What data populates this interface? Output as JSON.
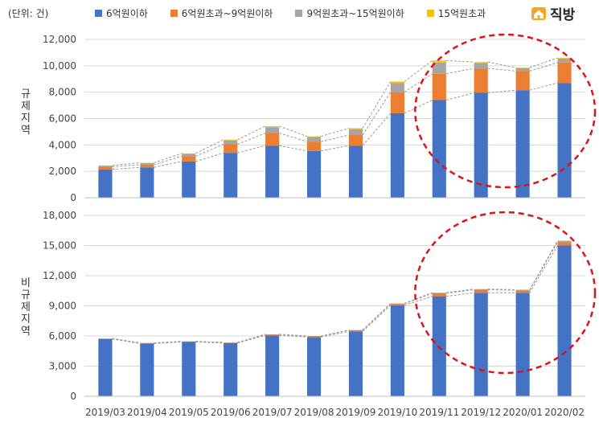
{
  "unit_label": "(단위: 건)",
  "logo": {
    "text": "직방",
    "icon": "house-icon"
  },
  "legend": [
    {
      "label": "6억원이하",
      "color": "#4472C4"
    },
    {
      "label": "6억원초과~9억원이하",
      "color": "#ED7D31"
    },
    {
      "label": "9억원초과~15억원이하",
      "color": "#A5A5A5"
    },
    {
      "label": "15억원초과",
      "color": "#FFC000"
    }
  ],
  "chart_data": [
    {
      "type": "bar",
      "stacked": true,
      "ylabel": "규제지역",
      "ylim": [
        0,
        12000
      ],
      "yticks": [
        0,
        2000,
        4000,
        6000,
        8000,
        10000,
        12000
      ],
      "ytick_labels": [
        "0",
        "2,000",
        "4,000",
        "6,000",
        "8,000",
        "10,000",
        "12,000"
      ],
      "categories": [
        "2019/03",
        "2019/04",
        "2019/05",
        "2019/06",
        "2019/07",
        "2019/08",
        "2019/09",
        "2019/10",
        "2019/11",
        "2019/12",
        "2020/01",
        "2020/02"
      ],
      "series": [
        {
          "name": "6억원이하",
          "values": [
            2150,
            2300,
            2750,
            3400,
            3950,
            3550,
            3950,
            6400,
            7400,
            7950,
            8150,
            8700
          ]
        },
        {
          "name": "6억원초과~9억원이하",
          "values": [
            200,
            200,
            400,
            650,
            950,
            700,
            800,
            1600,
            2000,
            1850,
            1450,
            1550
          ]
        },
        {
          "name": "9억원초과~15억원이하",
          "values": [
            80,
            130,
            180,
            300,
            450,
            350,
            450,
            700,
            850,
            400,
            230,
            300
          ]
        },
        {
          "name": "15억원초과",
          "values": [
            20,
            20,
            30,
            50,
            70,
            50,
            70,
            100,
            150,
            80,
            30,
            50
          ]
        }
      ],
      "highlight": "dashed-ellipse-2019/11-2020/02",
      "grid": true
    },
    {
      "type": "bar",
      "stacked": true,
      "ylabel": "비규제지역",
      "ylim": [
        0,
        18000
      ],
      "yticks": [
        0,
        3000,
        6000,
        9000,
        12000,
        15000,
        18000
      ],
      "ytick_labels": [
        "0",
        "3,000",
        "6,000",
        "9,000",
        "12,000",
        "15,000",
        "18,000"
      ],
      "categories": [
        "2019/03",
        "2019/04",
        "2019/05",
        "2019/06",
        "2019/07",
        "2019/08",
        "2019/09",
        "2019/10",
        "2019/11",
        "2019/12",
        "2020/01",
        "2020/02"
      ],
      "series": [
        {
          "name": "6억원이하",
          "values": [
            5700,
            5250,
            5400,
            5300,
            6050,
            5900,
            6450,
            9050,
            9950,
            10300,
            10300,
            15000
          ]
        },
        {
          "name": "6억원초과~9억원이하",
          "values": [
            50,
            50,
            60,
            50,
            100,
            80,
            120,
            150,
            300,
            300,
            250,
            350
          ]
        },
        {
          "name": "9억원초과~15억원이하",
          "values": [
            10,
            10,
            10,
            10,
            20,
            20,
            30,
            30,
            60,
            60,
            50,
            100
          ]
        },
        {
          "name": "15억원초과",
          "values": [
            0,
            0,
            0,
            0,
            0,
            0,
            0,
            10,
            10,
            10,
            5,
            50
          ]
        }
      ],
      "highlight": "dashed-ellipse-2019/11-2020/02",
      "grid": true
    }
  ]
}
